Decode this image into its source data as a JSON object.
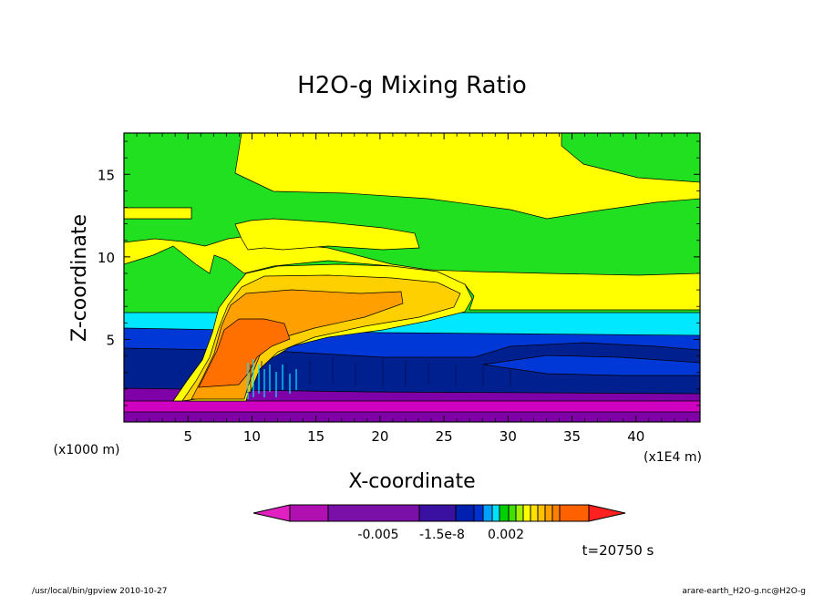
{
  "chart_data": {
    "type": "heatmap",
    "title": "H2O-g Mixing Ratio",
    "xlabel": "X-coordinate",
    "ylabel": "Z-coordinate",
    "x_unit_label": "(x1E4 m)",
    "y_unit_label": "(x1000 m)",
    "xlim": [
      0,
      45
    ],
    "ylim": [
      0,
      17.5
    ],
    "x_ticks": [
      "5",
      "10",
      "15",
      "20",
      "25",
      "30",
      "35",
      "40"
    ],
    "x_tick_values": [
      5,
      10,
      15,
      20,
      25,
      30,
      35,
      40
    ],
    "y_ticks": [
      "5",
      "10",
      "15"
    ],
    "y_tick_values": [
      5,
      10,
      15
    ],
    "colorbar": {
      "labels": [
        "-0.005",
        "-1.5e-8",
        "0.002"
      ],
      "colors": [
        "#e020c0",
        "#b010b0",
        "#7a10a8",
        "#3a10a0",
        "#0020b0",
        "#0030d0",
        "#00a0ff",
        "#00e0ff",
        "#00d000",
        "#40e000",
        "#a0f000",
        "#ffff00",
        "#ffe000",
        "#ffc000",
        "#ffa000",
        "#ff8000",
        "#ff6000",
        "#ff2020"
      ]
    },
    "region_colors": {
      "magenta": "#d000c0",
      "purple": "#8000a8",
      "navy": "#002090",
      "blue": "#0038d8",
      "cyan": "#00e8ff",
      "green": "#20e020",
      "yellow": "#ffff00",
      "gold": "#ffd000",
      "orange": "#ffa000",
      "deep_orange": "#ff7000"
    }
  },
  "annotation_time": "t=20750 s",
  "footer": {
    "left": "/usr/local/bin/gpview  2010-10-27",
    "right": "arare-earth_H2O-g.nc@H2O-g"
  }
}
